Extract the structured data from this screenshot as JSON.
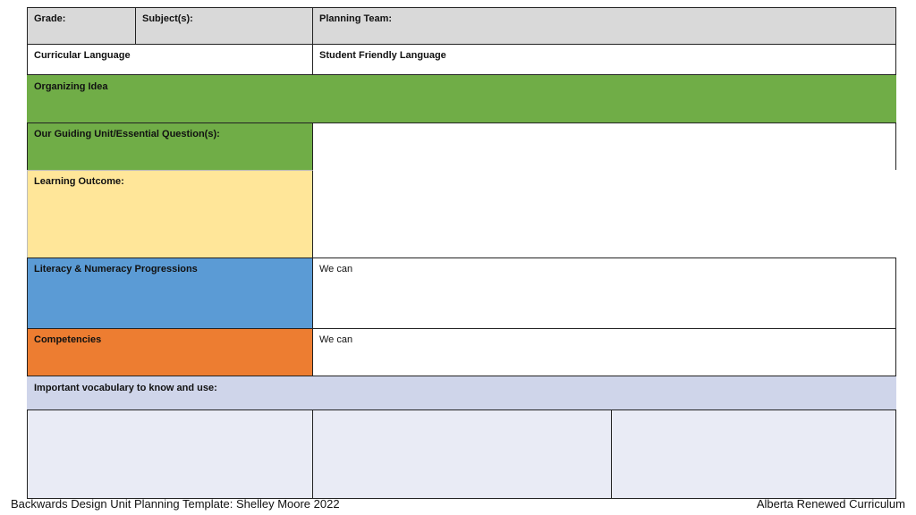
{
  "colors": {
    "header_gray": "#d9d9d9",
    "organizing_green": "#70ad47",
    "outcome_yellow": "#ffe699",
    "literacy_blue": "#5b9bd5",
    "competency_orange": "#ed7d31",
    "vocab_lavender": "#cfd5ea",
    "vocab_box_light": "#e9ebf5"
  },
  "header": {
    "grade_label": "Grade:",
    "subjects_label": "Subject(s):",
    "planning_team_label": "Planning Team:"
  },
  "language": {
    "curricular_label": "Curricular Language",
    "student_friendly_label": "Student Friendly Language"
  },
  "organizing_idea_label": "Organizing Idea",
  "guiding_question_label": "Our Guiding Unit/Essential Question(s):",
  "learning_outcome_label": "Learning Outcome:",
  "literacy": {
    "label": "Literacy & Numeracy Progressions",
    "we_can": "We can"
  },
  "competencies": {
    "label": "Competencies",
    "we_can": "We can"
  },
  "vocabulary_label": "Important vocabulary to know and use:",
  "footer": {
    "left": "Backwards Design Unit Planning Template: Shelley Moore 2022",
    "right": "Alberta Renewed Curriculum"
  }
}
